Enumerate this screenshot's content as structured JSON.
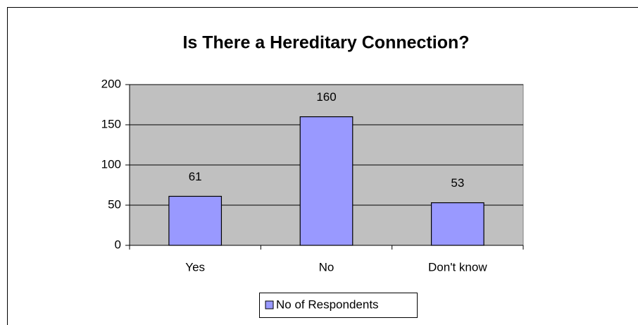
{
  "chart_data": {
    "type": "bar",
    "title": "Is There a Hereditary Connection?",
    "categories": [
      "Yes",
      "No",
      "Don't know"
    ],
    "series": [
      {
        "name": "No of Respondents",
        "color": "#9999ff",
        "values": [
          61,
          160,
          53
        ]
      }
    ],
    "ylim": [
      0,
      200
    ],
    "yticks": [
      0,
      50,
      100,
      150,
      200
    ],
    "grid": true,
    "legend": "bottom"
  }
}
